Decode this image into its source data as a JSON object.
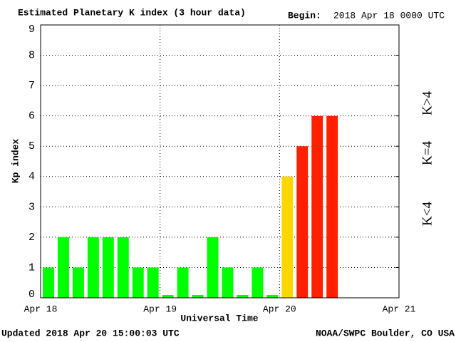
{
  "chart_data": {
    "type": "bar",
    "title": "Estimated Planetary K index (3 hour data)",
    "begin_label": "Begin:",
    "begin_value": "2018 Apr 18 0000 UTC",
    "y_label": "Kp index",
    "x_label": "Universal Time",
    "footer_left": "Updated 2018 Apr 20 15:00:03 UTC",
    "footer_right": "NOAA/SWPC Boulder, CO USA",
    "categories": [
      null,
      null,
      null,
      null,
      null,
      null,
      null,
      null,
      null,
      null,
      null,
      null,
      null,
      null,
      null,
      null,
      null,
      null,
      null,
      null
    ],
    "values": [
      1,
      2,
      1,
      2,
      2,
      2,
      1,
      1,
      0,
      1,
      0,
      2,
      1,
      0,
      1,
      0,
      4,
      5,
      6,
      6
    ],
    "bar_colors": [
      "#00ff00",
      "#00ff00",
      "#00ff00",
      "#00ff00",
      "#00ff00",
      "#00ff00",
      "#00ff00",
      "#00ff00",
      "#00ff00",
      "#00ff00",
      "#00ff00",
      "#00ff00",
      "#00ff00",
      "#00ff00",
      "#00ff00",
      "#00ff00",
      "#ffd700",
      "#ff2000",
      "#ff2000",
      "#ff2000"
    ],
    "xtick_labels": [
      "Apr 18",
      "Apr 19",
      "Apr 20",
      "Apr 21"
    ],
    "ylim": [
      0,
      9
    ],
    "yticks": [
      0,
      1,
      2,
      3,
      4,
      5,
      6,
      7,
      8,
      9
    ],
    "grid": true,
    "legend": [
      {
        "name": "K<4",
        "color": "#00ff00"
      },
      {
        "name": "K=4",
        "color": "#ffd700"
      },
      {
        "name": "K>4",
        "color": "#ff2000"
      }
    ]
  }
}
